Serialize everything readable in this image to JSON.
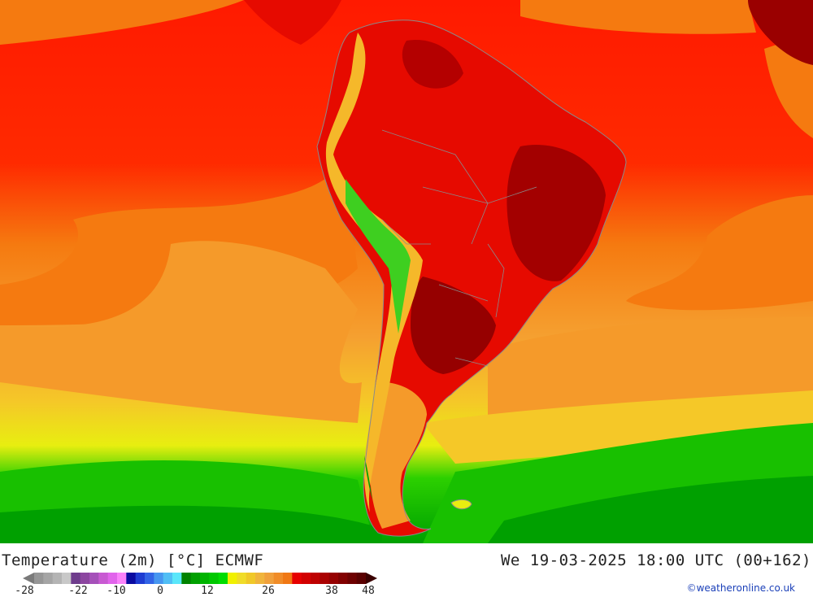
{
  "header": {
    "title_left": "Temperature (2m) [°C] ECMWF",
    "title_right": "We 19-03-2025 18:00 UTC (00+162)"
  },
  "legend": {
    "tick_labels": [
      "-28",
      "-22",
      "-10",
      "0",
      "12",
      "26",
      "38",
      "48"
    ],
    "colors": [
      "#969696",
      "#a5a5a5",
      "#b4b4b4",
      "#c8c8c8",
      "#6e3c8c",
      "#8c46a0",
      "#a550b9",
      "#c85ad2",
      "#e164eb",
      "#fa82fa",
      "#0a0aa0",
      "#1e3cd2",
      "#3264e6",
      "#4696f0",
      "#50bef5",
      "#5ae6fa",
      "#008200",
      "#00a000",
      "#00b400",
      "#00c800",
      "#00dc00",
      "#f0f000",
      "#f0dc28",
      "#f0c828",
      "#f0b43c",
      "#f0a03c",
      "#f08c28",
      "#f07814",
      "#e60000",
      "#d20000",
      "#be0000",
      "#aa0000",
      "#960000",
      "#820000",
      "#6e0000",
      "#5a0000"
    ]
  },
  "credit": "©weatheronline.co.uk"
}
